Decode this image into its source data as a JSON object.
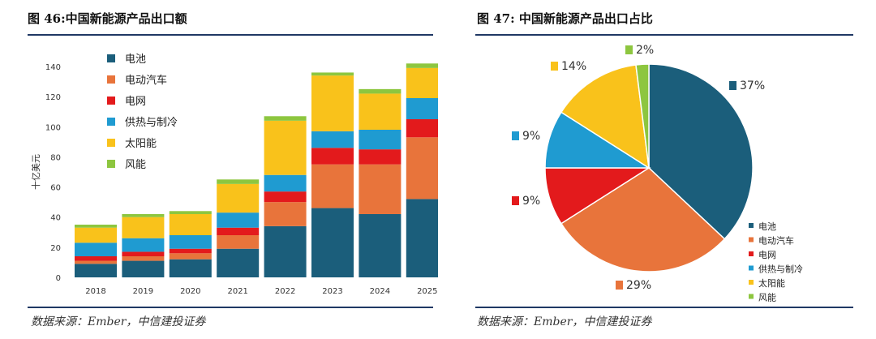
{
  "left": {
    "title": "图 46:中国新能源产品出口额",
    "source": "数据来源：Ember，中信建投证券"
  },
  "right": {
    "title": "图 47: 中国新能源产品出口占比",
    "source": "数据来源：Ember，中信建投证券"
  },
  "chart_data": [
    {
      "type": "bar",
      "stacked": true,
      "ylabel": "十亿美元",
      "ylim": [
        0,
        140
      ],
      "yticks": [
        0,
        20,
        40,
        60,
        80,
        100,
        120,
        140
      ],
      "grid": false,
      "legend_position": "top-left",
      "categories": [
        "2018",
        "2019",
        "2020",
        "2021",
        "2022",
        "2023",
        "2024",
        "2025"
      ],
      "series": [
        {
          "name": "电池",
          "color": "#1b5e7b",
          "values": [
            9,
            11,
            12,
            19,
            34,
            46,
            42,
            52
          ]
        },
        {
          "name": "电动汽车",
          "color": "#e8743b",
          "values": [
            2,
            3,
            4,
            9,
            16,
            29,
            33,
            41
          ]
        },
        {
          "name": "电网",
          "color": "#e31a1c",
          "values": [
            3,
            3,
            3,
            5,
            7,
            11,
            10,
            12
          ]
        },
        {
          "name": "供热与制冷",
          "color": "#1f9bd1",
          "values": [
            9,
            9,
            9,
            10,
            11,
            11,
            13,
            14
          ]
        },
        {
          "name": "太阳能",
          "color": "#f9c21b",
          "values": [
            10,
            14,
            14,
            19,
            36,
            37,
            24,
            20
          ]
        },
        {
          "name": "风能",
          "color": "#8dc63f",
          "values": [
            2,
            2,
            2,
            3,
            3,
            2,
            3,
            3
          ]
        }
      ]
    },
    {
      "type": "pie",
      "legend_position": "bottom-right",
      "slices": [
        {
          "name": "电池",
          "value": 37,
          "label": "37%",
          "color": "#1b5e7b"
        },
        {
          "name": "电动汽车",
          "value": 29,
          "label": "29%",
          "color": "#e8743b"
        },
        {
          "name": "电网",
          "value": 9,
          "label": "9%",
          "color": "#e31a1c"
        },
        {
          "name": "供热与制冷",
          "value": 9,
          "label": "9%",
          "color": "#1f9bd1"
        },
        {
          "name": "太阳能",
          "value": 14,
          "label": "14%",
          "color": "#f9c21b"
        },
        {
          "name": "风能",
          "value": 2,
          "label": "2%",
          "color": "#8dc63f"
        }
      ]
    }
  ]
}
